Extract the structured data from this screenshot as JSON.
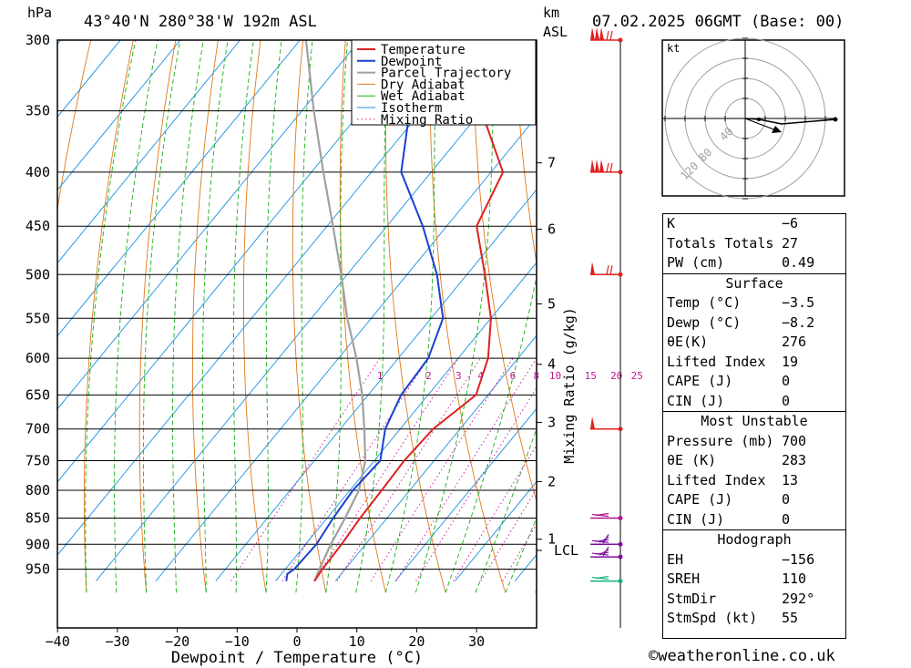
{
  "header": {
    "location": "43°40'N  280°38'W  192m  ASL",
    "datetime": "07.02.2025  06GMT  (Base: 00)",
    "hpa_label": "hPa",
    "km_label": "km",
    "asl_label": "ASL",
    "kt_label": "kt"
  },
  "chart_data": {
    "type": "skew-t",
    "xlabel": "Dewpoint / Temperature (°C)",
    "x_ticks": [
      -40,
      -30,
      -20,
      -10,
      0,
      10,
      20,
      30
    ],
    "pressure_levels": [
      300,
      350,
      400,
      450,
      500,
      550,
      600,
      650,
      700,
      750,
      800,
      850,
      900,
      950
    ],
    "xlim": [
      -40,
      40
    ],
    "ylim_hpa": [
      975,
      300
    ],
    "km_ticks": [
      {
        "label": "7",
        "p": 392
      },
      {
        "label": "6",
        "p": 453
      },
      {
        "label": "5",
        "p": 533
      },
      {
        "label": "4",
        "p": 608
      },
      {
        "label": "3",
        "p": 690
      },
      {
        "label": "2",
        "p": 785
      },
      {
        "label": "1",
        "p": 890
      }
    ],
    "lcl": {
      "label": "LCL",
      "p": 912
    },
    "mixing_ratio": {
      "label": "Mixing Ratio (g/kg)",
      "values": [
        1,
        2,
        3,
        4,
        6,
        8,
        10,
        15,
        20,
        25
      ],
      "label_values": [
        "1",
        "2",
        "3",
        "4",
        "6",
        "8",
        "10",
        "15",
        "20",
        "25"
      ]
    },
    "legend": {
      "placement": "top",
      "items": [
        {
          "name": "Temperature",
          "color": "#e02020"
        },
        {
          "name": "Dewpoint",
          "color": "#1a3fd0"
        },
        {
          "name": "Parcel Trajectory",
          "color": "#a0a0a0"
        },
        {
          "name": "Dry Adiabat",
          "color": "#e07818"
        },
        {
          "name": "Wet Adiabat",
          "color": "#18b018"
        },
        {
          "name": "Isotherm",
          "color": "#1890e0"
        },
        {
          "name": "Mixing Ratio",
          "color": "#d020a0"
        }
      ]
    },
    "temperature": [
      {
        "p": 300,
        "t": -42
      },
      {
        "p": 350,
        "t": -40
      },
      {
        "p": 400,
        "t": -28
      },
      {
        "p": 450,
        "t": -25
      },
      {
        "p": 500,
        "t": -17
      },
      {
        "p": 550,
        "t": -10
      },
      {
        "p": 600,
        "t": -5
      },
      {
        "p": 650,
        "t": -2
      },
      {
        "p": 700,
        "t": -4.5
      },
      {
        "p": 750,
        "t": -5
      },
      {
        "p": 800,
        "t": -4.7
      },
      {
        "p": 850,
        "t": -4.5
      },
      {
        "p": 900,
        "t": -4
      },
      {
        "p": 950,
        "t": -3.8
      },
      {
        "p": 975,
        "t": -3.5
      }
    ],
    "dewpoint": [
      {
        "p": 300,
        "t": -62
      },
      {
        "p": 350,
        "t": -52
      },
      {
        "p": 400,
        "t": -45
      },
      {
        "p": 450,
        "t": -34
      },
      {
        "p": 500,
        "t": -25
      },
      {
        "p": 550,
        "t": -18
      },
      {
        "p": 600,
        "t": -15
      },
      {
        "p": 650,
        "t": -14.5
      },
      {
        "p": 700,
        "t": -12.5
      },
      {
        "p": 750,
        "t": -9
      },
      {
        "p": 800,
        "t": -9.5
      },
      {
        "p": 850,
        "t": -9
      },
      {
        "p": 900,
        "t": -8.2
      },
      {
        "p": 950,
        "t": -8.5
      },
      {
        "p": 960,
        "t": -9
      },
      {
        "p": 975,
        "t": -8.2
      }
    ],
    "parcel": [
      {
        "p": 300,
        "t": -79
      },
      {
        "p": 350,
        "t": -68
      },
      {
        "p": 400,
        "t": -58
      },
      {
        "p": 450,
        "t": -49
      },
      {
        "p": 500,
        "t": -41
      },
      {
        "p": 550,
        "t": -34
      },
      {
        "p": 600,
        "t": -27
      },
      {
        "p": 650,
        "t": -21
      },
      {
        "p": 700,
        "t": -16
      },
      {
        "p": 750,
        "t": -11.5
      },
      {
        "p": 800,
        "t": -8.5
      },
      {
        "p": 850,
        "t": -7
      },
      {
        "p": 900,
        "t": -5.8
      },
      {
        "p": 950,
        "t": -4.3
      },
      {
        "p": 975,
        "t": -3.5
      }
    ],
    "wind_barbs": [
      {
        "p": 300,
        "color": "#e02020",
        "style": "flags3"
      },
      {
        "p": 400,
        "color": "#e02020",
        "style": "flags3"
      },
      {
        "p": 500,
        "color": "#e02020",
        "style": "flags1"
      },
      {
        "p": 700,
        "color": "#e02020",
        "style": "flag1"
      },
      {
        "p": 850,
        "color": "#b01090",
        "style": "barbs"
      },
      {
        "p": 900,
        "color": "#8010a0",
        "style": "barbs2"
      },
      {
        "p": 925,
        "color": "#8010a0",
        "style": "barbs2"
      },
      {
        "p": 975,
        "color": "#10b080",
        "style": "barbs"
      }
    ]
  },
  "hodograph": {
    "unit_label": "kt",
    "ring_labels": [
      "40",
      "80",
      "120"
    ]
  },
  "indices": {
    "top": [
      {
        "label": "K",
        "value": "-6"
      },
      {
        "label": "Totals Totals",
        "value": "27"
      },
      {
        "label": "PW (cm)",
        "value": "0.49"
      }
    ],
    "surface": {
      "title": "Surface",
      "rows": [
        {
          "label": "Temp (°C)",
          "value": "-3.5"
        },
        {
          "label": "Dewp (°C)",
          "value": "-8.2"
        },
        {
          "label": "θE(K)",
          "value": "276"
        },
        {
          "label": "Lifted Index",
          "value": "19"
        },
        {
          "label": "CAPE (J)",
          "value": "0"
        },
        {
          "label": "CIN (J)",
          "value": "0"
        }
      ]
    },
    "most_unstable": {
      "title": "Most Unstable",
      "rows": [
        {
          "label": "Pressure (mb)",
          "value": "700"
        },
        {
          "label": "θE (K)",
          "value": "283"
        },
        {
          "label": "Lifted Index",
          "value": "13"
        },
        {
          "label": "CAPE (J)",
          "value": "0"
        },
        {
          "label": "CIN (J)",
          "value": "0"
        }
      ]
    },
    "hodograph_stats": {
      "title": "Hodograph",
      "rows": [
        {
          "label": "EH",
          "value": "-156"
        },
        {
          "label": "SREH",
          "value": "110"
        },
        {
          "label": "StmDir",
          "value": "292°"
        },
        {
          "label": "StmSpd (kt)",
          "value": "55"
        }
      ]
    }
  },
  "footer": "©weatheronline.co.uk"
}
